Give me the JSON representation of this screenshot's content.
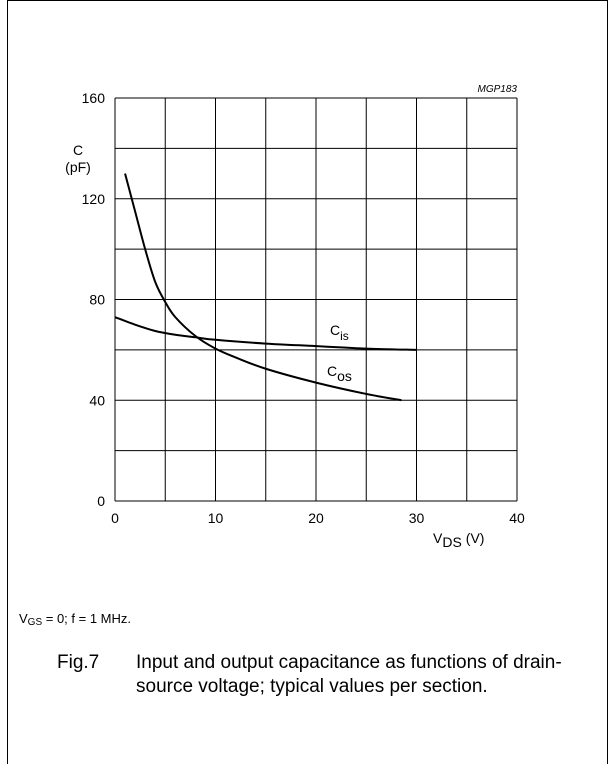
{
  "code": "MGP183",
  "condition": {
    "text": "= 0; f = 1 MHz.",
    "label_main": "V",
    "label_sub": "GS"
  },
  "caption": {
    "number": "Fig.7",
    "text": "Input and output capacitance as functions of drain-source voltage; typical values per section."
  },
  "chart_data": {
    "type": "line",
    "ylabel": {
      "main": "C",
      "unit": "(pF)"
    },
    "xlabel": {
      "main": "V",
      "sub": "DS",
      "unit": "(V)"
    },
    "xlim": [
      0,
      40
    ],
    "ylim": [
      0,
      160
    ],
    "x_ticks": [
      "0",
      "10",
      "20",
      "30",
      "40"
    ],
    "y_ticks": [
      "0",
      "40",
      "80",
      "120",
      "160"
    ],
    "grid": true,
    "series": [
      {
        "name": {
          "main": "C",
          "sub": "is"
        },
        "x": [
          0,
          2,
          4,
          6,
          8,
          10,
          15,
          20,
          25,
          30
        ],
        "y": [
          73,
          70,
          67.5,
          66,
          65,
          64,
          62.5,
          61.5,
          60.5,
          60
        ]
      },
      {
        "name": {
          "main": "C",
          "sub": "os"
        },
        "x": [
          1,
          2,
          3,
          4,
          5,
          6,
          8,
          10,
          12,
          15,
          20,
          25,
          28.5
        ],
        "y": [
          130,
          115,
          100,
          87,
          79,
          73,
          65.5,
          60.5,
          57,
          52.5,
          47,
          42.5,
          40
        ]
      }
    ]
  }
}
